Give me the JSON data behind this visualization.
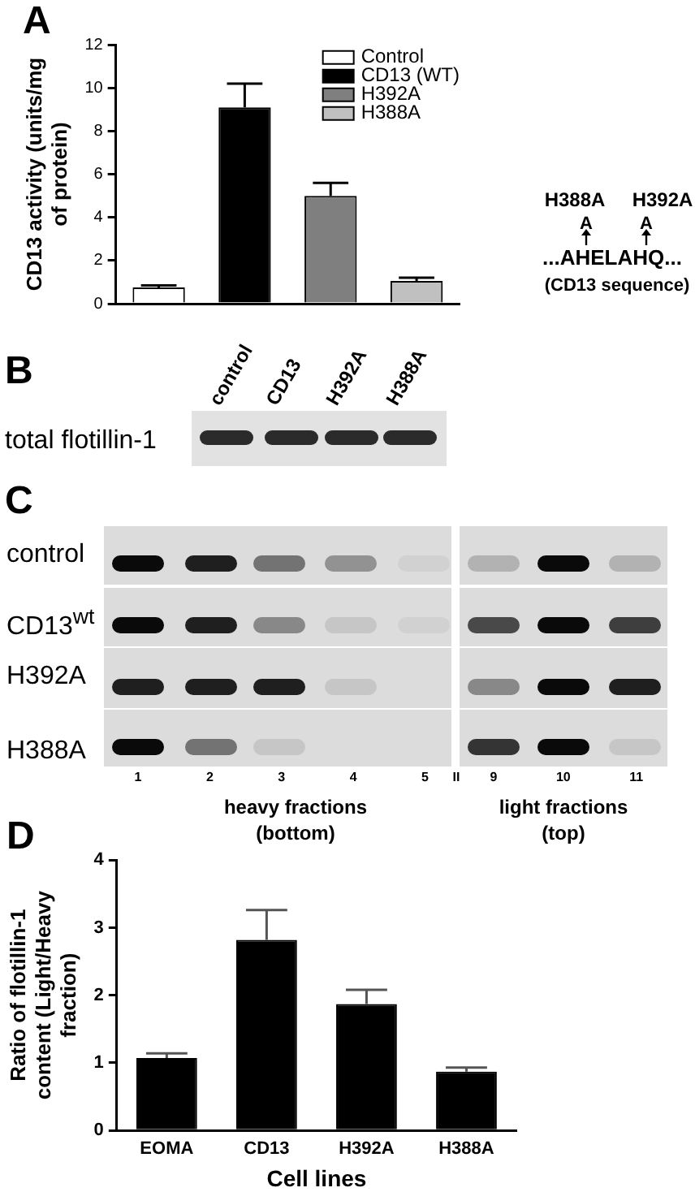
{
  "chart_data": [
    {
      "type": "bar",
      "title": "A",
      "ylabel": "CD13 activity (units/mg of protein)",
      "categories": [
        null,
        null,
        null,
        null
      ],
      "series": [
        {
          "name": "Control",
          "color": "#ffffff",
          "values": [
            0.75,
            null,
            null,
            null
          ],
          "errors": [
            [
              0.75,
              0.85
            ],
            null,
            null,
            null
          ]
        },
        {
          "name": "CD13 (WT)",
          "color": "#000000",
          "values": [
            null,
            9.1,
            null,
            null
          ],
          "errors": [
            null,
            [
              9.1,
              10.2
            ],
            null,
            null
          ]
        },
        {
          "name": "H392A",
          "color": "#7f7f7f",
          "values": [
            null,
            null,
            5.0,
            null
          ],
          "errors": [
            null,
            null,
            [
              5.0,
              5.6
            ],
            null
          ]
        },
        {
          "name": "H388A",
          "color": "#c0c0c0",
          "values": [
            null,
            null,
            null,
            1.05
          ],
          "errors": [
            null,
            null,
            null,
            [
              1.05,
              1.2
            ]
          ]
        }
      ],
      "ylim": [
        0,
        12
      ],
      "yticks": [
        0,
        2,
        4,
        6,
        8,
        10,
        12
      ],
      "legend": "top right"
    },
    {
      "type": "other",
      "annotations": [
        "H388A",
        "H392A",
        "A",
        "A",
        "...AHELAHQ...",
        "(CD13 sequence)"
      ]
    },
    {
      "type": "other",
      "title": "B",
      "annotations": [
        "control",
        "CD13",
        "H392A",
        "H388A",
        "total flotillin-1"
      ]
    },
    {
      "type": "other",
      "title": "C",
      "annotations": [
        "control",
        "CD13$^{wt}$",
        "H392A",
        "H388A",
        "1 2 3 4 5",
        "II",
        "9 10 11",
        "heavy fractions (bottom)",
        "light fractions (top)"
      ]
    },
    {
      "type": "bar",
      "title": "D",
      "xlabel": "Cell lines",
      "ylabel": "Ratio of flotillin-1 content (Light/Heavy fraction)",
      "categories": [
        "EOMA",
        "CD13",
        "H392A",
        "H388A"
      ],
      "values": [
        1.07,
        2.82,
        1.87,
        0.87
      ],
      "errors": [
        [
          1.07,
          1.14
        ],
        [
          2.82,
          3.26
        ],
        [
          1.87,
          2.08
        ],
        [
          0.87,
          0.93
        ]
      ],
      "color": "#000000",
      "ylim": [
        0,
        4
      ],
      "yticks": [
        0,
        1,
        2,
        3,
        4
      ]
    }
  ]
}
